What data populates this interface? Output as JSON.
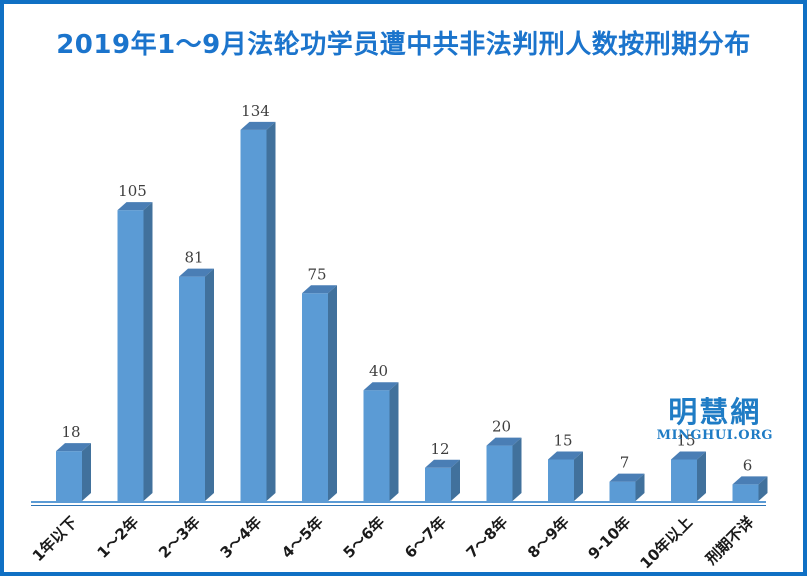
{
  "chart_data": {
    "type": "bar",
    "title": "2019年1～9月法轮功学员遭中共非法判刑人数按刑期分布",
    "categories": [
      "1年以下",
      "1～2年",
      "2～3年",
      "3～4年",
      "4～5年",
      "5～6年",
      "6～7年",
      "7～8年",
      "8～9年",
      "9-10年",
      "10年以上",
      "刑期不详"
    ],
    "values": [
      18,
      105,
      81,
      134,
      75,
      40,
      12,
      20,
      15,
      7,
      15,
      6
    ],
    "xlabel": "",
    "ylabel": "",
    "ylim": [
      0,
      140
    ],
    "grid": false,
    "legend": false,
    "bar_style": "3d",
    "colors": {
      "bar_front": "#5B9BD5",
      "bar_top": "#4A7EB5",
      "bar_side": "#41719C",
      "axis_thick": "#5B9BD5",
      "axis_thin": "#2E74B5",
      "value_label": "#3F3F3F",
      "category_label": "#1A1A1A"
    }
  },
  "frame": {
    "border_color": "#1070C4",
    "title_color": "#1B74CC"
  },
  "watermark": {
    "logo": "明慧網",
    "site": "MINGHUI.ORG",
    "color": "#1F7CC5"
  }
}
